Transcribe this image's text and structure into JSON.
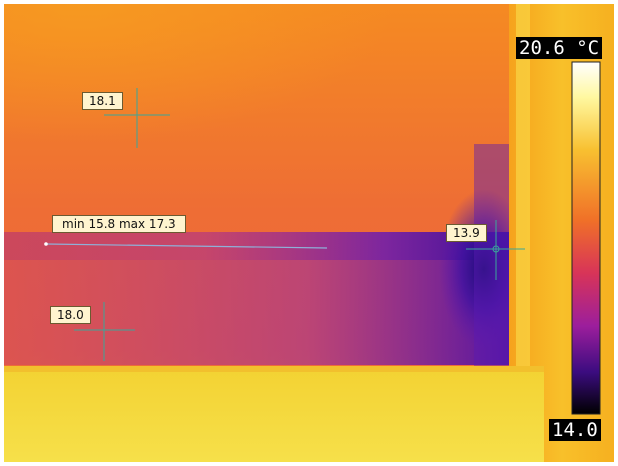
{
  "image": {
    "description": "infrared thermal image of a wall/ceiling junction",
    "palette": "iron (black-purple-magenta-orange-yellow-white)"
  },
  "scale": {
    "max_label": "20.6 °C",
    "min_label": "14.0",
    "max_value": 20.6,
    "min_value": 14.0
  },
  "markers": [
    {
      "id": "spot-1",
      "label": "18.1",
      "value": 18.1
    },
    {
      "id": "spot-2",
      "label": "18.0",
      "value": 18.0
    },
    {
      "id": "spot-3",
      "label": "13.9",
      "value": 13.9
    }
  ],
  "line_measurement": {
    "label": "min 15.8 max 17.3",
    "min": 15.8,
    "max": 17.3
  },
  "colors": {
    "marker_line": "#3aa69a",
    "measure_line": "#8fb0d8",
    "tag_bg": "#fff4cf"
  }
}
